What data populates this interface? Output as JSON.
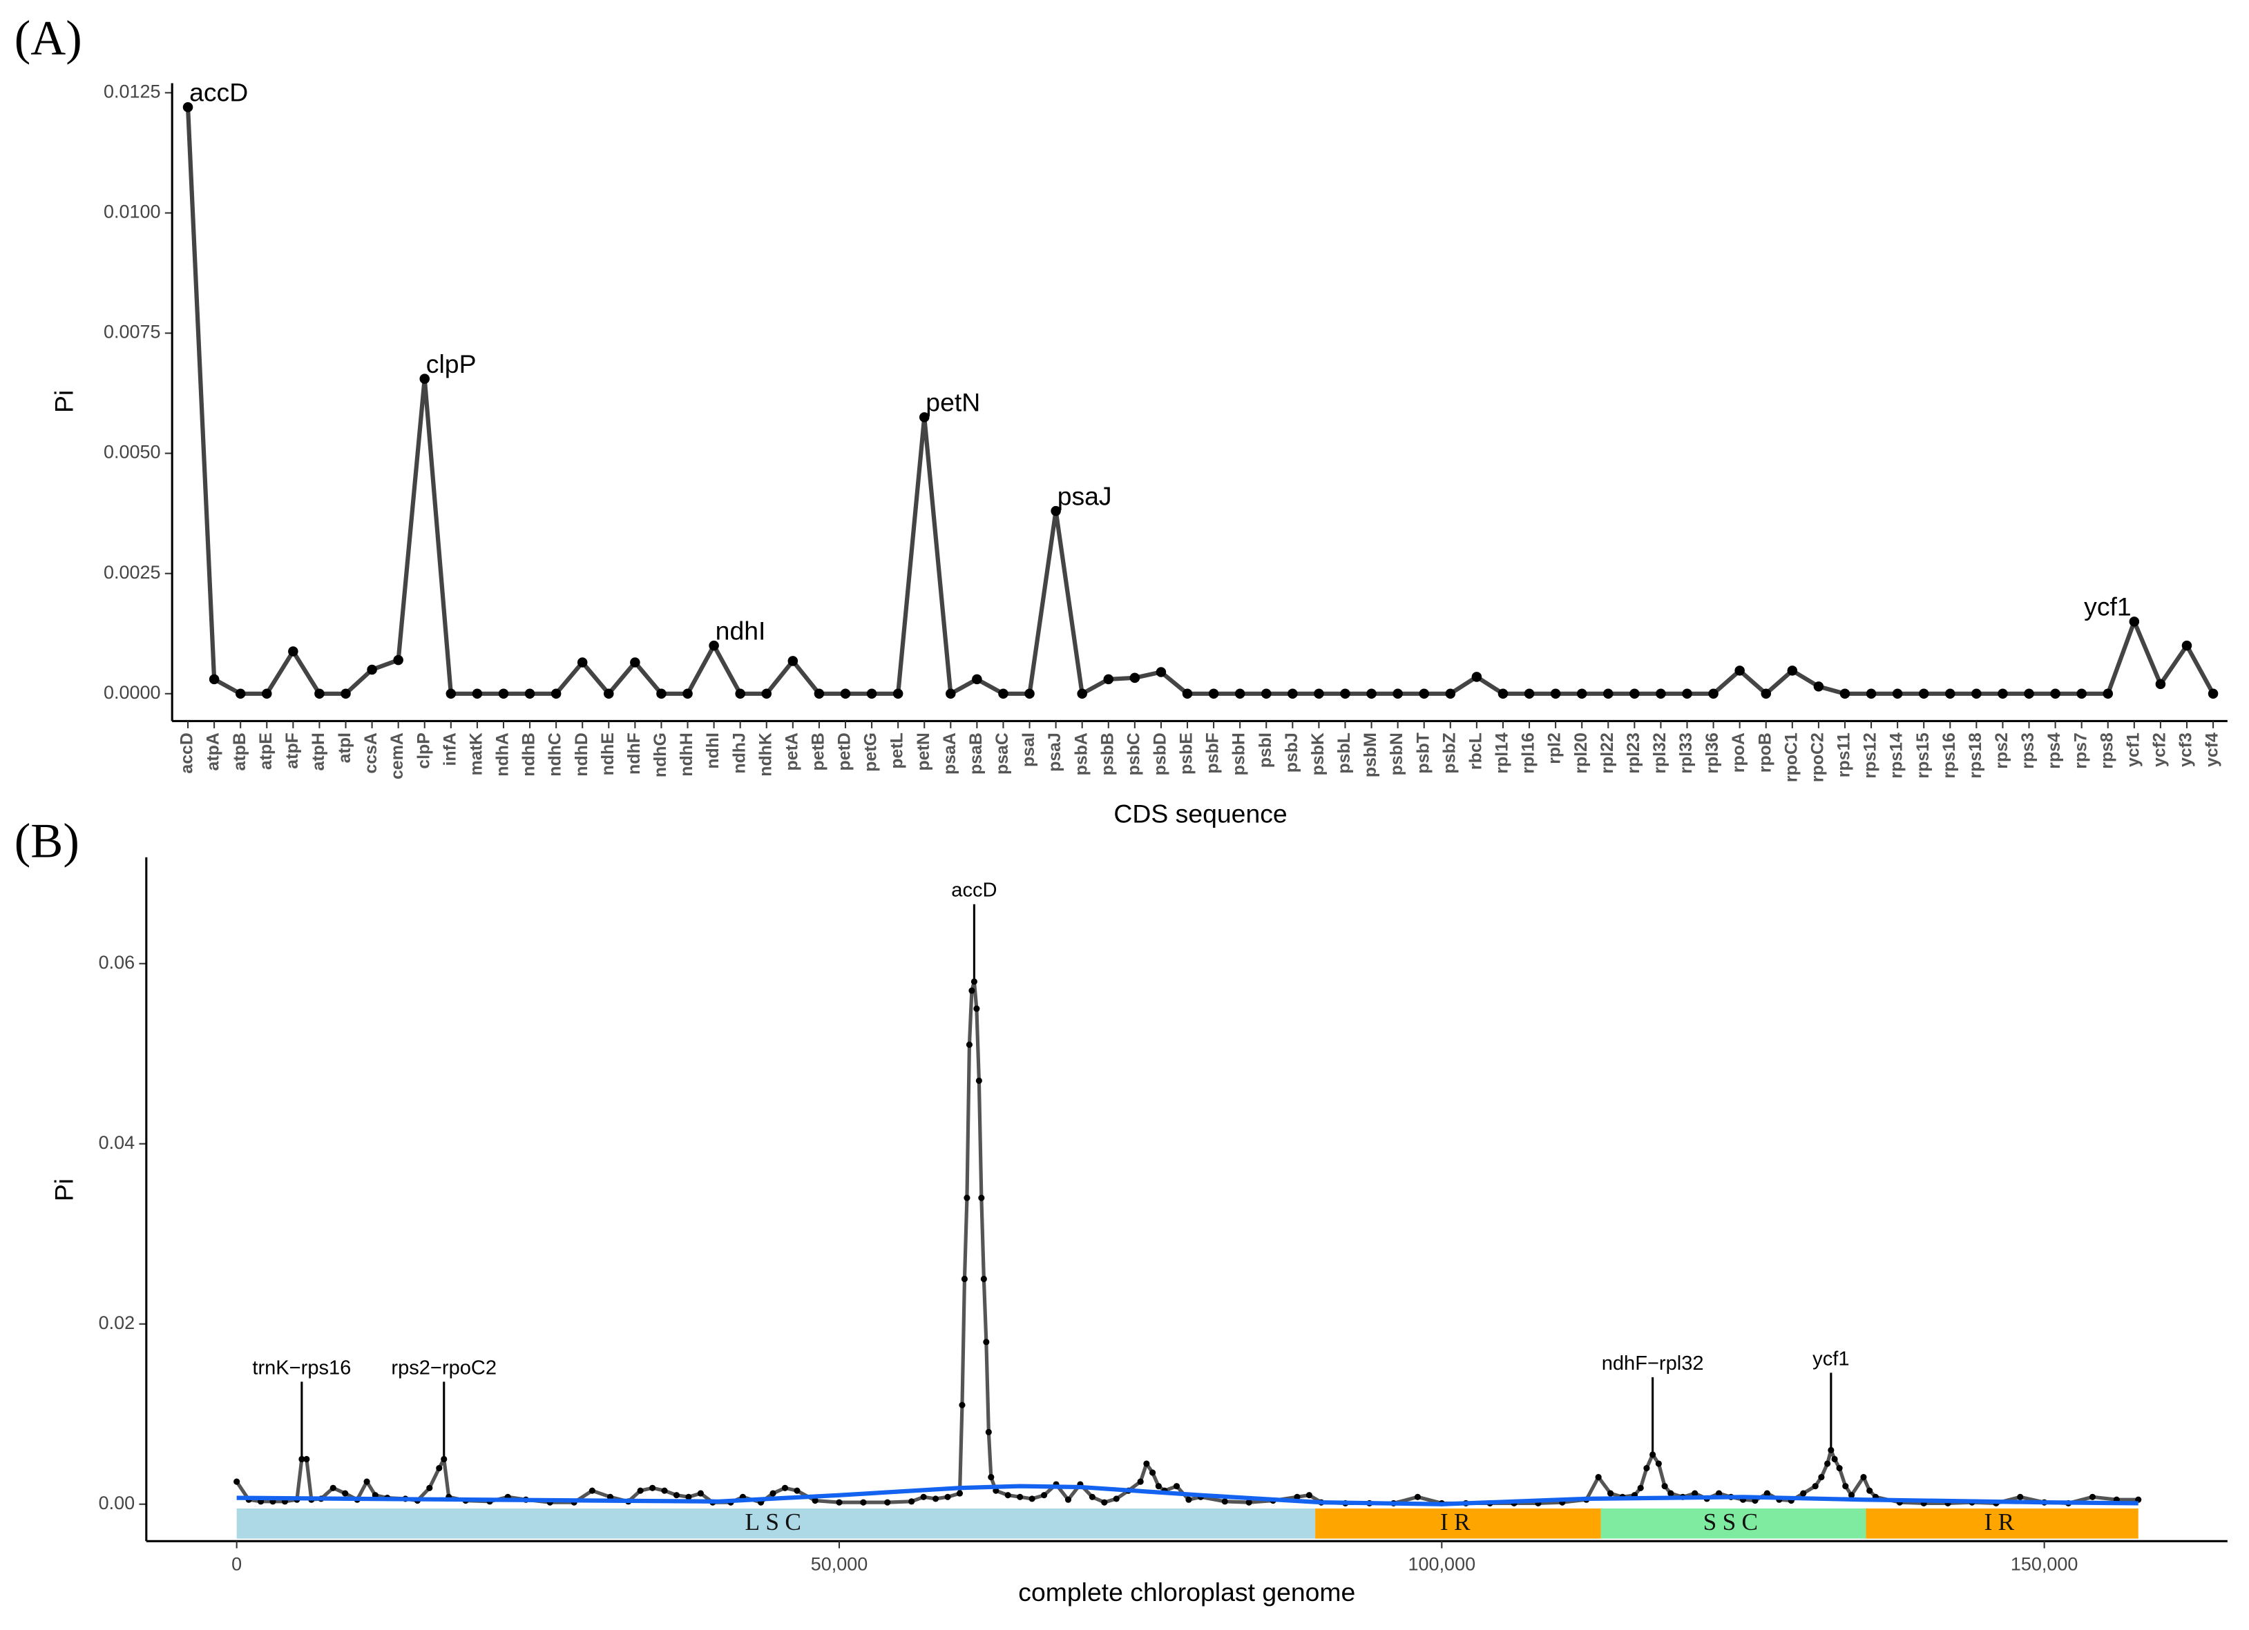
{
  "chart_data": [
    {
      "type": "line",
      "panel": "(A)",
      "x_label": "CDS sequence",
      "y_label": "Pi",
      "color": "#444444",
      "point_color": "#000000",
      "categories": [
        "accD",
        "atpA",
        "atpB",
        "atpE",
        "atpF",
        "atpH",
        "atpI",
        "ccsA",
        "cemA",
        "clpP",
        "infA",
        "matK",
        "ndhA",
        "ndhB",
        "ndhC",
        "ndhD",
        "ndhE",
        "ndhF",
        "ndhG",
        "ndhH",
        "ndhI",
        "ndhJ",
        "ndhK",
        "petA",
        "petB",
        "petD",
        "petG",
        "petL",
        "petN",
        "psaA",
        "psaB",
        "psaC",
        "psaI",
        "psaJ",
        "psbA",
        "psbB",
        "psbC",
        "psbD",
        "psbE",
        "psbF",
        "psbH",
        "psbI",
        "psbJ",
        "psbK",
        "psbL",
        "psbM",
        "psbN",
        "psbT",
        "psbZ",
        "rbcL",
        "rpl14",
        "rpl16",
        "rpl2",
        "rpl20",
        "rpl22",
        "rpl23",
        "rpl32",
        "rpl33",
        "rpl36",
        "rpoA",
        "rpoB",
        "rpoC1",
        "rpoC2",
        "rps11",
        "rps12",
        "rps14",
        "rps15",
        "rps16",
        "rps18",
        "rps2",
        "rps3",
        "rps4",
        "rps7",
        "rps8",
        "ycf1",
        "ycf2",
        "ycf3",
        "ycf4"
      ],
      "values": [
        0.0122,
        0.0003,
        0,
        0,
        0.00088,
        0,
        0,
        0.0005,
        0.0007,
        0.00655,
        0,
        0,
        0,
        0,
        0,
        0.00065,
        0,
        0.00065,
        0,
        0,
        0.001,
        0,
        0,
        0.00068,
        0,
        0,
        0,
        0,
        0.00575,
        0,
        0.0003,
        0,
        0,
        0.0038,
        0,
        0.0003,
        0.00033,
        0.00045,
        0,
        0,
        0,
        0,
        0,
        0,
        0,
        0,
        0,
        0,
        0,
        0.00035,
        0,
        0,
        0,
        0,
        0,
        0,
        0,
        0,
        0,
        0.00048,
        0,
        0.00048,
        0.00015,
        0,
        0,
        0,
        0,
        0,
        0,
        0,
        0,
        0,
        0,
        0,
        0.0015,
        0.0002,
        0.001,
        0
      ],
      "annotations": [
        "accD",
        "clpP",
        "ndhI",
        "petN",
        "psaJ",
        "ycf1"
      ],
      "ylim": [
        -0.00057,
        0.0127
      ],
      "yticks": [
        {
          "value": 0,
          "label": "0.0000"
        },
        {
          "value": 0.0025,
          "label": "0.0025"
        },
        {
          "value": 0.005,
          "label": "0.0050"
        },
        {
          "value": 0.0075,
          "label": "0.0075"
        },
        {
          "value": 0.01,
          "label": "0.0100"
        },
        {
          "value": 0.0125,
          "label": "0.0125"
        }
      ]
    },
    {
      "type": "line",
      "panel": "(B)",
      "x_label": "complete chloroplast genome",
      "y_label": "Pi",
      "color": "#555555",
      "point_color": "#000000",
      "x": [
        0,
        1000,
        2000,
        3000,
        4000,
        5000,
        5400,
        5800,
        6200,
        7000,
        8000,
        9000,
        10000,
        10800,
        11500,
        12500,
        14000,
        15000,
        16000,
        16800,
        17200,
        17600,
        19000,
        21000,
        22500,
        24000,
        26000,
        28000,
        29500,
        31000,
        32500,
        33500,
        34500,
        35500,
        36500,
        37500,
        38500,
        39500,
        41000,
        42000,
        43500,
        44500,
        45500,
        46500,
        48000,
        50000,
        52000,
        54000,
        56000,
        57000,
        58000,
        59000,
        60000,
        60200,
        60400,
        60600,
        60800,
        61000,
        61200,
        61400,
        61600,
        61800,
        62000,
        62200,
        62400,
        62600,
        63000,
        64000,
        65000,
        66000,
        67000,
        68000,
        69000,
        70000,
        71000,
        72000,
        73000,
        74000,
        75000,
        75500,
        76000,
        76500,
        77000,
        78000,
        79000,
        80000,
        82000,
        84000,
        86000,
        88000,
        89000,
        90000,
        92000,
        94000,
        96000,
        98000,
        100000,
        102000,
        104000,
        106000,
        108000,
        110000,
        112000,
        113000,
        114000,
        115000,
        116000,
        116500,
        117000,
        117500,
        118000,
        118500,
        119000,
        120000,
        121000,
        122000,
        123000,
        124000,
        125000,
        126000,
        127000,
        128000,
        129000,
        130000,
        131000,
        131500,
        132000,
        132300,
        132600,
        133000,
        133500,
        134000,
        135000,
        135500,
        136000,
        138000,
        140000,
        142000,
        144000,
        146000,
        148000,
        150000,
        152000,
        154000,
        156000,
        157800
      ],
      "values": [
        0.0025,
        0.0005,
        0.0003,
        0.0003,
        0.0003,
        0.0005,
        0.005,
        0.005,
        0.0005,
        0.0006,
        0.0018,
        0.0012,
        0.0005,
        0.0025,
        0.001,
        0.0007,
        0.0006,
        0.0004,
        0.0018,
        0.004,
        0.005,
        0.0008,
        0.0004,
        0.0003,
        0.0008,
        0.0005,
        0.0002,
        0.0002,
        0.0015,
        0.0008,
        0.0003,
        0.0015,
        0.0018,
        0.0015,
        0.001,
        0.0008,
        0.0012,
        0.0002,
        0.0002,
        0.0008,
        0.0002,
        0.0012,
        0.0018,
        0.0015,
        0.0004,
        0.0002,
        0.0002,
        0.0002,
        0.0003,
        0.0008,
        0.0006,
        0.0008,
        0.0012,
        0.011,
        0.025,
        0.034,
        0.051,
        0.057,
        0.058,
        0.055,
        0.047,
        0.034,
        0.025,
        0.018,
        0.008,
        0.003,
        0.0015,
        0.001,
        0.0008,
        0.0006,
        0.001,
        0.0022,
        0.0005,
        0.0022,
        0.0008,
        0.0002,
        0.0006,
        0.0015,
        0.0025,
        0.0045,
        0.0035,
        0.002,
        0.0015,
        0.002,
        0.0005,
        0.0008,
        0.0003,
        0.0002,
        0.0004,
        0.0008,
        0.001,
        0.0002,
        0.0001,
        0.0001,
        0.0001,
        0.0008,
        0.0001,
        0.0001,
        0.0001,
        0.0001,
        0.0001,
        0.0002,
        0.0005,
        0.003,
        0.0012,
        0.0008,
        0.001,
        0.0018,
        0.004,
        0.0055,
        0.0045,
        0.002,
        0.0012,
        0.0008,
        0.0012,
        0.0006,
        0.0012,
        0.0008,
        0.0005,
        0.0004,
        0.0012,
        0.0005,
        0.0004,
        0.0012,
        0.002,
        0.003,
        0.0045,
        0.006,
        0.005,
        0.004,
        0.002,
        0.001,
        0.003,
        0.0015,
        0.0008,
        0.0002,
        0.0001,
        0.0001,
        0.0002,
        0.0001,
        0.0008,
        0.0002,
        0.0001,
        0.0008,
        0.0005,
        0.0005
      ],
      "smooth": {
        "color": "#1463f0",
        "x": [
          0,
          20000,
          40000,
          50000,
          60000,
          65000,
          70000,
          80000,
          90000,
          100000,
          112000,
          125000,
          135000,
          150000,
          157800
        ],
        "values": [
          0.0007,
          0.0005,
          0.0003,
          0.001,
          0.0018,
          0.002,
          0.0019,
          0.001,
          0.0002,
          0,
          0.0006,
          0.0008,
          0.0005,
          0.0002,
          0.0001
        ]
      },
      "regions": [
        {
          "name": "LSC",
          "start": 0,
          "end": 89500,
          "color": "#add8e6"
        },
        {
          "name": "IR",
          "start": 89500,
          "end": 113200,
          "color": "#ffa500"
        },
        {
          "name": "SSC",
          "start": 113200,
          "end": 135200,
          "color": "#7febA0"
        },
        {
          "name": "IR",
          "start": 135200,
          "end": 157800,
          "color": "#ffa500"
        }
      ],
      "annotations": [
        {
          "label": "trnK−rps16",
          "x": 5400,
          "y": 0.005
        },
        {
          "label": "rps2−rpoC2",
          "x": 17200,
          "y": 0.005
        },
        {
          "label": "accD",
          "x": 61200,
          "y": 0.058
        },
        {
          "label": "ndhF−rpl32",
          "x": 117500,
          "y": 0.0055
        },
        {
          "label": "ycf1",
          "x": 132300,
          "y": 0.006
        }
      ],
      "xlim": [
        -7500,
        165200
      ],
      "xticks": [
        0,
        {
          "value": 50000,
          "label": "50,000"
        },
        {
          "value": 100000,
          "label": "100,000"
        },
        {
          "value": 150000,
          "label": "150,000"
        }
      ],
      "ylim": [
        -0.0041,
        0.0718
      ],
      "yticks": [
        {
          "value": 0,
          "label": "0.00"
        },
        0.02,
        0.04,
        0.06
      ]
    }
  ]
}
